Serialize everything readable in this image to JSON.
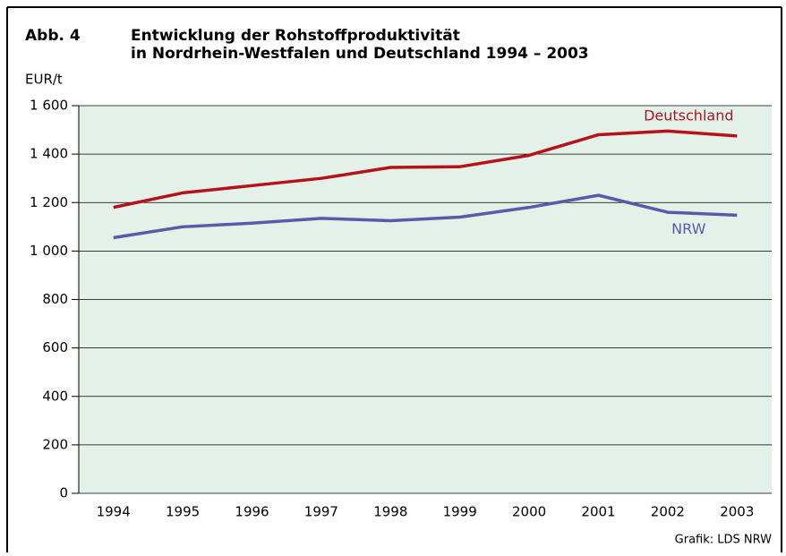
{
  "chart_data": {
    "type": "line",
    "figure_label": "Abb. 4",
    "title": [
      "Entwicklung der Rohstoffproduktivität",
      "in Nordrhein-Westfalen und Deutschland 1994 – 2003"
    ],
    "y_label": "EUR/t",
    "source": "Grafik: LDS NRW",
    "categories": [
      "1994",
      "1995",
      "1996",
      "1997",
      "1998",
      "1999",
      "2000",
      "2001",
      "2002",
      "2003"
    ],
    "series": [
      {
        "name": "Deutschland",
        "color": "#b5121b",
        "values": [
          1180,
          1240,
          1270,
          1300,
          1345,
          1348,
          1395,
          1480,
          1495,
          1475
        ]
      },
      {
        "name": "NRW",
        "color": "#5c5aa6",
        "values": [
          1055,
          1100,
          1115,
          1135,
          1125,
          1140,
          1180,
          1230,
          1160,
          1148
        ]
      }
    ],
    "ylim": [
      0,
      1600
    ],
    "yticks": [
      0,
      200,
      400,
      600,
      800,
      {
        "value": 1000,
        "label": "1 000"
      },
      {
        "value": 1200,
        "label": "1 200"
      },
      {
        "value": 1400,
        "label": "1 400"
      },
      {
        "value": 1600,
        "label": "1 600"
      }
    ],
    "grid": true,
    "plot_background": "#e4f1e8"
  }
}
